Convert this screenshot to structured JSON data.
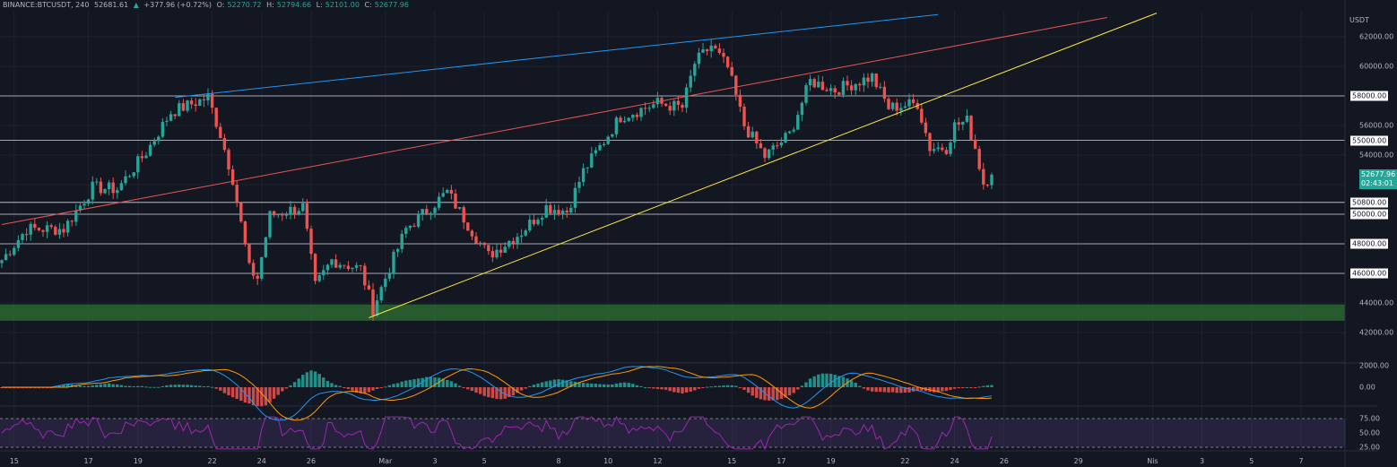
{
  "header": {
    "symbol": "BINANCE:BTCUSDT, 240",
    "last": "52681.61",
    "change": "+377.96 (+0.72%)",
    "o_label": "O:",
    "o": "52270.72",
    "h_label": "H:",
    "h": "52794.66",
    "l_label": "L:",
    "l": "52101.00",
    "c_label": "C:",
    "c": "52677.96"
  },
  "currency": "USDT",
  "current_price": "52677.96",
  "countdown": "02:43:01",
  "colors": {
    "up": "#26a69a",
    "down": "#ef5350",
    "blue_line": "#2196f3",
    "red_line": "#ef5350",
    "yellow_line": "#ffeb3b",
    "zone": "#2e6b34"
  },
  "chart_data": {
    "type": "candlestick",
    "price_ticks": [
      "62000.00",
      "60000.00",
      "56000.00",
      "54000.00",
      "44000.00",
      "42000.00"
    ],
    "boxed_levels": [
      "58000.00",
      "55000.00",
      "50800.00",
      "50000.00",
      "48000.00",
      "46000.00"
    ],
    "level_values": [
      58000,
      55000,
      50800,
      50000,
      48000,
      46000
    ],
    "support_zone": [
      42800,
      43900
    ],
    "time_labels": [
      "15",
      "17",
      "19",
      "22",
      "24",
      "26",
      "Mar",
      "3",
      "5",
      "8",
      "10",
      "12",
      "15",
      "17",
      "19",
      "22",
      "24",
      "26",
      "29",
      "Nis",
      "3",
      "5",
      "7"
    ],
    "time_label_index": [
      3,
      21,
      33,
      51,
      63,
      75,
      93,
      105,
      117,
      135,
      147,
      159,
      177,
      189,
      201,
      219,
      231,
      243,
      261,
      279,
      291,
      303,
      315
    ],
    "waypoints": [
      [
        0,
        46900
      ],
      [
        6,
        49000
      ],
      [
        15,
        49000
      ],
      [
        22,
        51800
      ],
      [
        28,
        51700
      ],
      [
        35,
        54200
      ],
      [
        41,
        56900
      ],
      [
        50,
        57900
      ],
      [
        53,
        55400
      ],
      [
        56,
        52400
      ],
      [
        60,
        46300
      ],
      [
        62,
        45700
      ],
      [
        65,
        49900
      ],
      [
        73,
        50500
      ],
      [
        76,
        45100
      ],
      [
        80,
        46900
      ],
      [
        87,
        46300
      ],
      [
        90,
        43600
      ],
      [
        93,
        45700
      ],
      [
        98,
        49000
      ],
      [
        108,
        51500
      ],
      [
        113,
        49300
      ],
      [
        118,
        47200
      ],
      [
        126,
        48800
      ],
      [
        132,
        50500
      ],
      [
        137,
        50200
      ],
      [
        141,
        52900
      ],
      [
        150,
        56600
      ],
      [
        159,
        57500
      ],
      [
        165,
        57200
      ],
      [
        168,
        60200
      ],
      [
        172,
        61400
      ],
      [
        176,
        59900
      ],
      [
        180,
        56000
      ],
      [
        185,
        53900
      ],
      [
        191,
        55400
      ],
      [
        196,
        59000
      ],
      [
        202,
        58400
      ],
      [
        211,
        59300
      ],
      [
        215,
        57200
      ],
      [
        222,
        57500
      ],
      [
        225,
        54500
      ],
      [
        229,
        54500
      ],
      [
        231,
        56000
      ],
      [
        234,
        56300
      ],
      [
        236,
        54500
      ],
      [
        238,
        52100
      ],
      [
        240,
        52677
      ]
    ],
    "trendlines": [
      {
        "name": "blue",
        "points": [
          [
            42,
            57900
          ],
          [
            227,
            63500
          ]
        ]
      },
      {
        "name": "red",
        "points": [
          [
            0,
            49300
          ],
          [
            268,
            63300
          ]
        ]
      },
      {
        "name": "yellow",
        "points": [
          [
            89,
            43000
          ],
          [
            280,
            63600
          ]
        ]
      }
    ],
    "macd": {
      "ticks": [
        "2000.00",
        "0.00"
      ]
    },
    "rsi": {
      "ticks": [
        "75.00",
        "50.00",
        "25.00"
      ]
    }
  }
}
